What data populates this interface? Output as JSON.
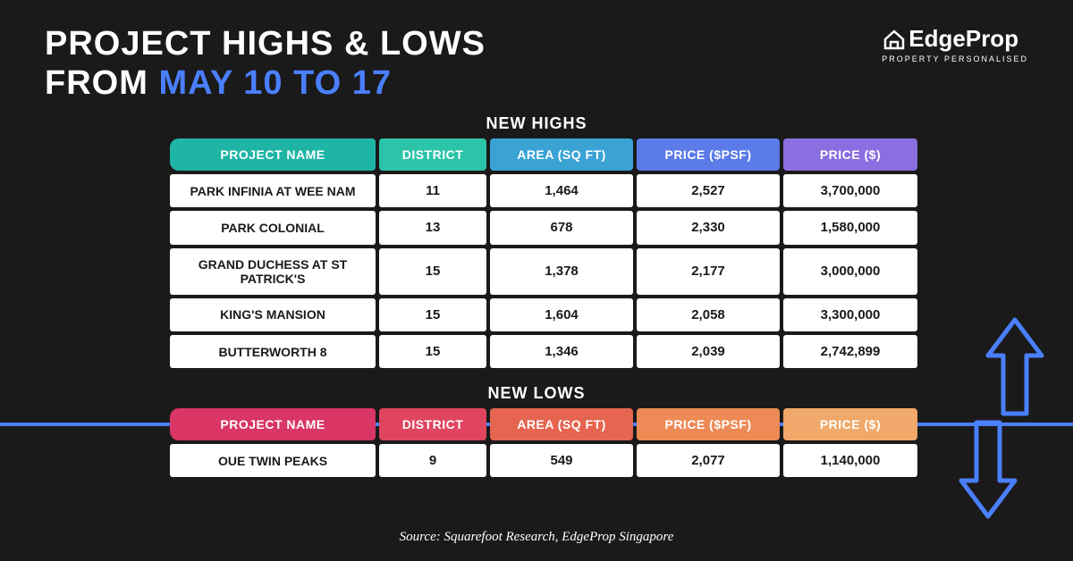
{
  "header": {
    "title_line1": "PROJECT HIGHS & LOWS",
    "title_line2_prefix": "FROM ",
    "title_line2_accent": "MAY 10 TO 17",
    "accent_color": "#4a7fff"
  },
  "logo": {
    "main": "EdgeProp",
    "tagline": "PROPERTY PERSONALISED"
  },
  "highs": {
    "label": "NEW HIGHS",
    "columns": [
      "PROJECT NAME",
      "DISTRICT",
      "AREA (SQ FT)",
      "PRICE ($PSF)",
      "PRICE ($)"
    ],
    "header_colors": [
      "#1fb5a6",
      "#2cc4a8",
      "#3aa3d4",
      "#5a7be8",
      "#8b6ee0"
    ],
    "rows": [
      {
        "name": "PARK INFINIA AT WEE NAM",
        "district": "11",
        "area": "1,464",
        "psf": "2,527",
        "price": "3,700,000"
      },
      {
        "name": "PARK COLONIAL",
        "district": "13",
        "area": "678",
        "psf": "2,330",
        "price": "1,580,000"
      },
      {
        "name": "GRAND DUCHESS AT ST PATRICK'S",
        "district": "15",
        "area": "1,378",
        "psf": "2,177",
        "price": "3,000,000"
      },
      {
        "name": "KING'S MANSION",
        "district": "15",
        "area": "1,604",
        "psf": "2,058",
        "price": "3,300,000"
      },
      {
        "name": "BUTTERWORTH 8",
        "district": "15",
        "area": "1,346",
        "psf": "2,039",
        "price": "2,742,899"
      }
    ]
  },
  "lows": {
    "label": "NEW LOWS",
    "columns": [
      "PROJECT NAME",
      "DISTRICT",
      "AREA (SQ FT)",
      "PRICE ($PSF)",
      "PRICE ($)"
    ],
    "header_colors": [
      "#d93565",
      "#e04560",
      "#e66550",
      "#ed8a55",
      "#f0a96a"
    ],
    "rows": [
      {
        "name": "OUE TWIN PEAKS",
        "district": "9",
        "area": "549",
        "psf": "2,077",
        "price": "1,140,000"
      }
    ]
  },
  "source": "Source: Squarefoot Research, EdgeProp Singapore",
  "style": {
    "background": "#1a1a1a",
    "text_white": "#ffffff",
    "arrow_color": "#4a7fff",
    "line_color": "#4a7fff",
    "cell_bg": "#ffffff",
    "title_fontsize": 38,
    "section_label_fontsize": 18,
    "th_fontsize": 14,
    "td_fontsize": 15
  }
}
